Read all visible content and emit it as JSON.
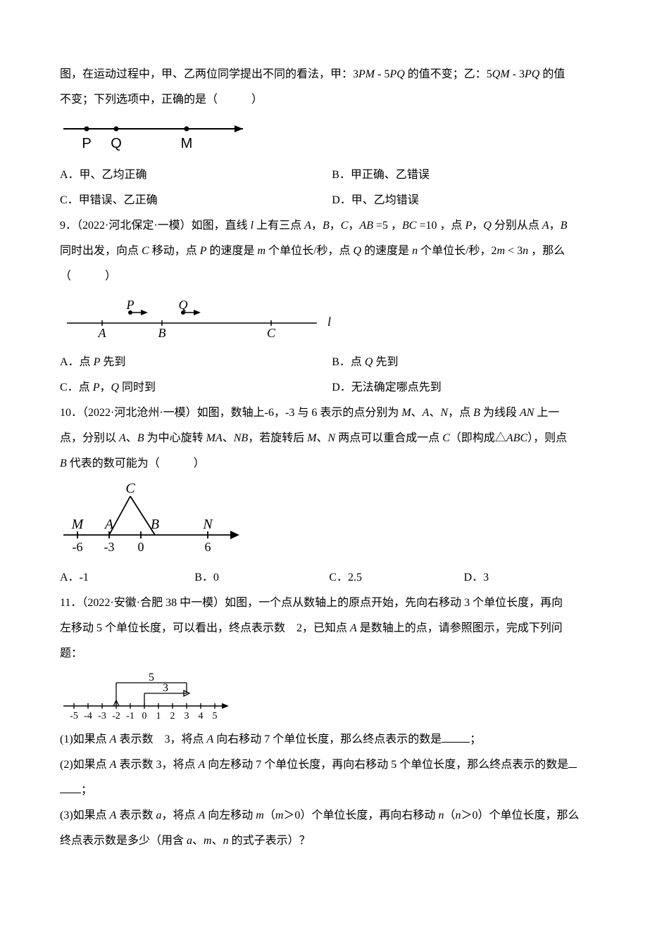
{
  "q8": {
    "cont_line1": "图，在运动过程中，甲、乙两位同学提出不同的看法，甲：3PM - 5PQ 的值不变；乙：5QM - 3PQ 的值",
    "cont_line2": "不变；下列选项中，正确的是（　　　）",
    "fig": {
      "P": "P",
      "Q": "Q",
      "M": "M"
    },
    "optA": "A．甲、乙均正确",
    "optB": "B．甲正确、乙错误",
    "optC": "C．甲错误、乙正确",
    "optD": "D．甲、乙均错误"
  },
  "q9": {
    "line1_a": "9．（2022·河北保定·一模）如图，直线 l 上有三点 A，B，C，",
    "ab_expr": "AB =5",
    "comma": "，",
    "bc_expr": "BC =10",
    "line1_b": "，点 P，Q 分别从点 A，B",
    "line2_a": "同时出发，向点 C 移动，点 P 的速度是 m 个单位长/秒，点 Q 的速度是 n 个单位长/秒，",
    "ineq": "2m < 3n",
    "line2_b": "，那么",
    "line3": "（　　　）",
    "fig": {
      "P": "P",
      "Q": "Q",
      "A": "A",
      "B": "B",
      "C": "C",
      "l": "l"
    },
    "optA": "A．点 P 先到",
    "optB": "B．点 Q 先到",
    "optC": "C．点 P，Q 同时到",
    "optD": "D．无法确定哪点先到"
  },
  "q10": {
    "line1": "10．（2022·河北沧州·一模）如图，数轴上-6，-3 与 6 表示的点分别为 M、A、N，点 B 为线段 AN 上一",
    "line2": "点，分别以 A、B 为中心旋转 MA、NB，若旋转后 M、N 两点可以重合成一点 C（即构成△ABC），则点",
    "line3": "B 代表的数可能为（　　　）",
    "fig": {
      "C": "C",
      "M": "M",
      "A": "A",
      "B": "B",
      "N": "N",
      "m6": "-6",
      "m3": "-3",
      "zero": "0",
      "six": "6"
    },
    "optA": "A．-1",
    "optB": "B．0",
    "optC": "C．2.5",
    "optD": "D．3"
  },
  "q11": {
    "line1": "11．（2022·安徽·合肥 38 中一模）如图，一个点从数轴上的原点开始，先向右移动 3 个单位长度，再向",
    "line2": "左移动 5 个单位长度，可以看出，终点表示数   2，已知点 A 是数轴上的点，请参照图示，完成下列问",
    "line3": "题：",
    "fig": {
      "label5": "5",
      "label3": "3",
      "ticks": [
        "-5",
        "-4",
        "-3",
        "-2",
        "-1",
        "0",
        "1",
        "2",
        "3",
        "4",
        "5"
      ]
    },
    "sub1_a": "(1)如果点 A 表示数   3，将点 A 向右移动 7 个单位长度，那么终点表示的数是",
    "sub1_b": "；",
    "sub2_a": "(2)如果点 A 表示数 3，将点 A 向左移动 7 个单位长度，再向右移动 5 个单位长度，那么终点表示的数是",
    "sub2_b": "；",
    "sub3_a": "(3)如果点 A 表示数 a，将点 A 向左移动 m（m＞0）个单位长度，再向右移动 n（n＞0）个单位长度，那么",
    "sub3_b": "终点表示数是多少（用含 a、m、n 的式子表示）？"
  },
  "colors": {
    "text": "#000000",
    "bg": "#ffffff",
    "line": "#000000"
  }
}
